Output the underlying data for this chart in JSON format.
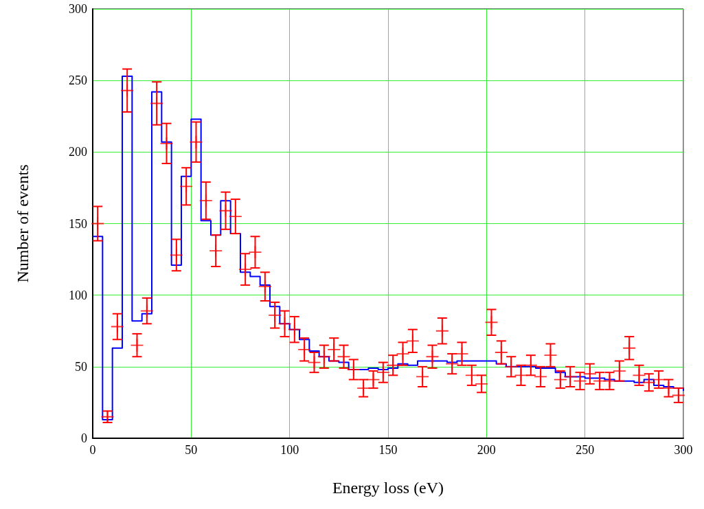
{
  "chart_data": {
    "type": "scatter",
    "xlabel": "Energy loss (eV)",
    "ylabel": "Number of events",
    "xlim": [
      0,
      300
    ],
    "xticks": [
      0,
      50,
      100,
      150,
      200,
      250,
      300
    ],
    "ylim": [
      0,
      300
    ],
    "yticks": [
      0,
      50,
      100,
      150,
      200,
      250,
      300
    ],
    "grid": true,
    "series": [
      {
        "type": "step",
        "marker": "none",
        "color": "#0000ff",
        "x": [
          0,
          5,
          10,
          15,
          20,
          25,
          30,
          35,
          40,
          45,
          50,
          55,
          60,
          65,
          70,
          75,
          80,
          85,
          90,
          95,
          100,
          105,
          110,
          115,
          120,
          125,
          130,
          135,
          140,
          145,
          150,
          155,
          160,
          165,
          170,
          175,
          180,
          185,
          190,
          195,
          200,
          205,
          210,
          215,
          220,
          225,
          230,
          235,
          240,
          245,
          250,
          255,
          260,
          265,
          270,
          275,
          280,
          285,
          290,
          295,
          300
        ],
        "values": [
          141,
          13,
          63,
          253,
          82,
          87,
          242,
          207,
          121,
          183,
          223,
          152,
          142,
          166,
          143,
          116,
          113,
          107,
          92,
          80,
          76,
          69,
          61,
          57,
          54,
          53,
          48,
          48,
          49,
          48,
          49,
          52,
          51,
          54,
          54,
          54,
          53,
          54,
          54,
          54,
          54,
          52,
          50,
          50,
          50,
          49,
          49,
          46,
          43,
          43,
          42,
          42,
          41,
          40,
          40,
          39,
          41,
          37,
          36,
          35,
          33
        ]
      },
      {
        "marker": "cross",
        "color": "#ff0000",
        "x": [
          2.5,
          7.5,
          12.5,
          17.5,
          22.5,
          27.5,
          32.5,
          37.5,
          42.5,
          47.5,
          52.5,
          57.5,
          62.5,
          67.5,
          72.5,
          77.5,
          82.5,
          87.5,
          92.5,
          97.5,
          102.5,
          107.5,
          112.5,
          117.5,
          122.5,
          127.5,
          132.5,
          137.5,
          142.5,
          147.5,
          152.5,
          157.5,
          162.5,
          167.5,
          172.5,
          177.5,
          182.5,
          187.5,
          192.5,
          197.5,
          202.5,
          207.5,
          212.5,
          217.5,
          222.5,
          227.5,
          232.5,
          237.5,
          242.5,
          247.5,
          252.5,
          257.5,
          262.5,
          267.5,
          272.5,
          277.5,
          282.5,
          287.5,
          292.5,
          297.5
        ],
        "values": [
          150,
          15,
          78,
          243,
          65,
          89,
          234,
          206,
          128,
          176,
          207,
          166,
          131,
          159,
          155,
          118,
          130,
          106,
          86,
          80,
          76,
          62,
          53,
          57,
          62,
          57,
          48,
          35,
          41,
          46,
          51,
          59,
          68,
          43,
          57,
          75,
          52,
          59,
          44,
          38,
          81,
          60,
          50,
          44,
          51,
          43,
          58,
          41,
          43,
          40,
          45,
          40,
          40,
          47,
          63,
          44,
          39,
          41,
          35,
          30
        ],
        "errors": [
          12,
          4,
          9,
          15,
          8,
          9,
          15,
          14,
          11,
          13,
          14,
          13,
          11,
          13,
          12,
          11,
          11,
          10,
          9,
          9,
          9,
          8,
          7,
          8,
          8,
          8,
          7,
          6,
          6,
          7,
          7,
          8,
          8,
          7,
          8,
          9,
          7,
          8,
          7,
          6,
          9,
          8,
          7,
          7,
          7,
          7,
          8,
          6,
          7,
          6,
          7,
          6,
          6,
          7,
          8,
          7,
          6,
          6,
          6,
          5
        ]
      }
    ]
  }
}
